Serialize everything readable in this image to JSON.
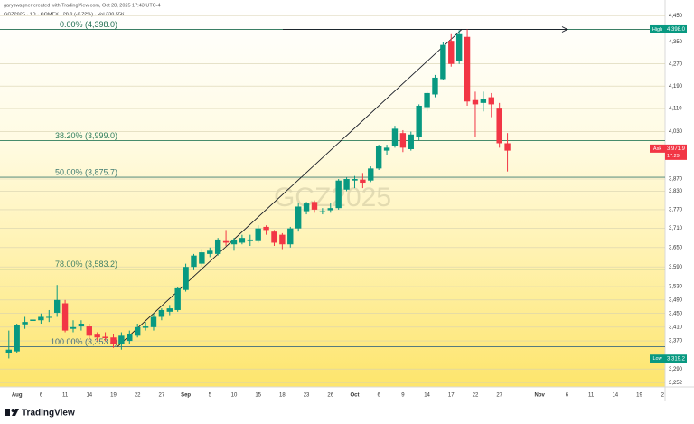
{
  "chart_data": {
    "type": "candlestick",
    "header": "garyswagner created with TradingView.com, Oct 28, 2025 17:43 UTC-4",
    "symbol_line": "GCZ2025 · 1D · COMEX · 28.9 (-0.72%) · Vol 330.55K",
    "watermark": "GCZ2025",
    "footer": "TradingView",
    "log_scale": true,
    "grid": true,
    "up_color": "#089981",
    "down_color": "#f23645",
    "xlim": [
      -1.1,
      81.6
    ],
    "ylim": [
      3240,
      4475
    ],
    "xticks": [
      {
        "value": 1,
        "label": "Aug"
      },
      {
        "value": 4,
        "label": "6"
      },
      {
        "value": 7,
        "label": "11"
      },
      {
        "value": 10,
        "label": "14"
      },
      {
        "value": 13,
        "label": "19"
      },
      {
        "value": 16,
        "label": "22"
      },
      {
        "value": 19,
        "label": "27"
      },
      {
        "value": 22,
        "label": "Sep"
      },
      {
        "value": 25,
        "label": "5"
      },
      {
        "value": 28,
        "label": "10"
      },
      {
        "value": 31,
        "label": "15"
      },
      {
        "value": 34,
        "label": "18"
      },
      {
        "value": 37,
        "label": "23"
      },
      {
        "value": 40,
        "label": "26"
      },
      {
        "value": 43,
        "label": "Oct"
      },
      {
        "value": 46,
        "label": "6"
      },
      {
        "value": 49,
        "label": "9"
      },
      {
        "value": 52,
        "label": "14"
      },
      {
        "value": 55,
        "label": "17"
      },
      {
        "value": 58,
        "label": "22"
      },
      {
        "value": 61,
        "label": "27"
      },
      {
        "value": 66,
        "label": "Nov"
      },
      {
        "value": 69.4,
        "label": "6"
      },
      {
        "value": 72.4,
        "label": "11"
      },
      {
        "value": 75.4,
        "label": "14"
      },
      {
        "value": 78.4,
        "label": "19"
      },
      {
        "value": 81.3,
        "label": "2"
      }
    ],
    "yticks": [
      {
        "value": 4450,
        "label": "4,450"
      },
      {
        "value": 4350,
        "label": "4,350"
      },
      {
        "value": 4270,
        "label": "4,270"
      },
      {
        "value": 4190,
        "label": "4,190"
      },
      {
        "value": 4110,
        "label": "4,110"
      },
      {
        "value": 4030,
        "label": "4,030"
      },
      {
        "value": 3870,
        "label": "3,870"
      },
      {
        "value": 3830,
        "label": "3,830"
      },
      {
        "value": 3770,
        "label": "3,770"
      },
      {
        "value": 3710,
        "label": "3,710"
      },
      {
        "value": 3650,
        "label": "3,650"
      },
      {
        "value": 3590,
        "label": "3,590"
      },
      {
        "value": 3530,
        "label": "3,530"
      },
      {
        "value": 3490,
        "label": "3,490"
      },
      {
        "value": 3450,
        "label": "3,450"
      },
      {
        "value": 3410,
        "label": "3,410"
      },
      {
        "value": 3370,
        "label": "3,370"
      },
      {
        "value": 3290,
        "label": "3,290"
      },
      {
        "value": 3252,
        "label": "3,252"
      }
    ],
    "open": [
      3335,
      3340,
      3418,
      3428,
      3430,
      3440,
      3452,
      3480,
      3405,
      3412,
      3412,
      3388,
      3382,
      3380,
      3360,
      3370,
      3385,
      3408,
      3410,
      3440,
      3455,
      3460,
      3520,
      3590,
      3600,
      3630,
      3630,
      3670,
      3660,
      3665,
      3670,
      3670,
      3715,
      3700,
      3690,
      3660,
      3710,
      3765,
      3795,
      3765,
      3768,
      3775,
      3835,
      3865,
      3868,
      3865,
      3905,
      3965,
      3980,
      4025,
      3970,
      4010,
      4115,
      4160,
      4215,
      4355,
      4280,
      4370,
      4140,
      4130,
      4150,
      4110,
      3990
    ],
    "high": [
      3400,
      3420,
      3440,
      3440,
      3450,
      3460,
      3535,
      3490,
      3430,
      3430,
      3420,
      3395,
      3395,
      3390,
      3395,
      3400,
      3420,
      3425,
      3450,
      3465,
      3475,
      3530,
      3600,
      3630,
      3645,
      3650,
      3680,
      3705,
      3680,
      3690,
      3690,
      3720,
      3720,
      3705,
      3695,
      3715,
      3790,
      3795,
      3800,
      3775,
      3790,
      3870,
      3875,
      3880,
      3890,
      3912,
      3985,
      3985,
      4050,
      4035,
      4030,
      4125,
      4170,
      4230,
      4350,
      4380,
      4395,
      4398,
      4170,
      4170,
      4165,
      4130,
      4025
    ],
    "low": [
      3320,
      3335,
      3405,
      3420,
      3420,
      3425,
      3440,
      3395,
      3395,
      3400,
      3375,
      3370,
      3370,
      3350,
      3345,
      3360,
      3380,
      3400,
      3400,
      3430,
      3445,
      3455,
      3515,
      3580,
      3590,
      3620,
      3625,
      3655,
      3640,
      3660,
      3655,
      3665,
      3690,
      3655,
      3645,
      3650,
      3700,
      3755,
      3760,
      3755,
      3760,
      3770,
      3830,
      3840,
      3840,
      3860,
      3900,
      3950,
      3975,
      3960,
      3965,
      4000,
      4100,
      4150,
      4210,
      4260,
      4270,
      4120,
      4010,
      4100,
      4080,
      3975,
      3895
    ],
    "close": [
      3345,
      3415,
      3425,
      3432,
      3440,
      3440,
      3490,
      3400,
      3410,
      3420,
      3385,
      3380,
      3378,
      3360,
      3385,
      3390,
      3410,
      3412,
      3440,
      3460,
      3465,
      3525,
      3590,
      3625,
      3635,
      3640,
      3675,
      3665,
      3675,
      3680,
      3675,
      3710,
      3705,
      3665,
      3660,
      3710,
      3780,
      3790,
      3770,
      3765,
      3775,
      3865,
      3870,
      3870,
      3858,
      3905,
      3980,
      3975,
      4040,
      3975,
      4020,
      4120,
      4165,
      4220,
      4340,
      4270,
      4380,
      4135,
      4125,
      4145,
      4125,
      3990,
      3965
    ],
    "fib_levels": [
      {
        "label": "0.00% (4,398.0)",
        "value": 4398,
        "color": "#1e6b4e"
      },
      {
        "label": "38.20% (3,999.0)",
        "value": 3999,
        "color": "#2e7d5b"
      },
      {
        "label": "50.00% (3,875.7)",
        "value": 3875.7,
        "color": "#3d7a70"
      },
      {
        "label": "78.00% (3,583.2)",
        "value": 3583.2,
        "color": "#3f7f66"
      },
      {
        "label": "100.00% (3,353.4)",
        "value": 3353.4,
        "color": "#3f6b7f"
      }
    ],
    "badges": [
      {
        "name": "High",
        "value": 4398,
        "value_label": "4,398.0",
        "color": "#089981"
      },
      {
        "name": "Ask",
        "value": 3971.9,
        "value_label": "3,971.9",
        "color": "#f23645",
        "note": "17:29"
      },
      {
        "name": "Low",
        "value": 3319.2,
        "value_label": "3,319.2",
        "color": "#089981"
      }
    ]
  }
}
